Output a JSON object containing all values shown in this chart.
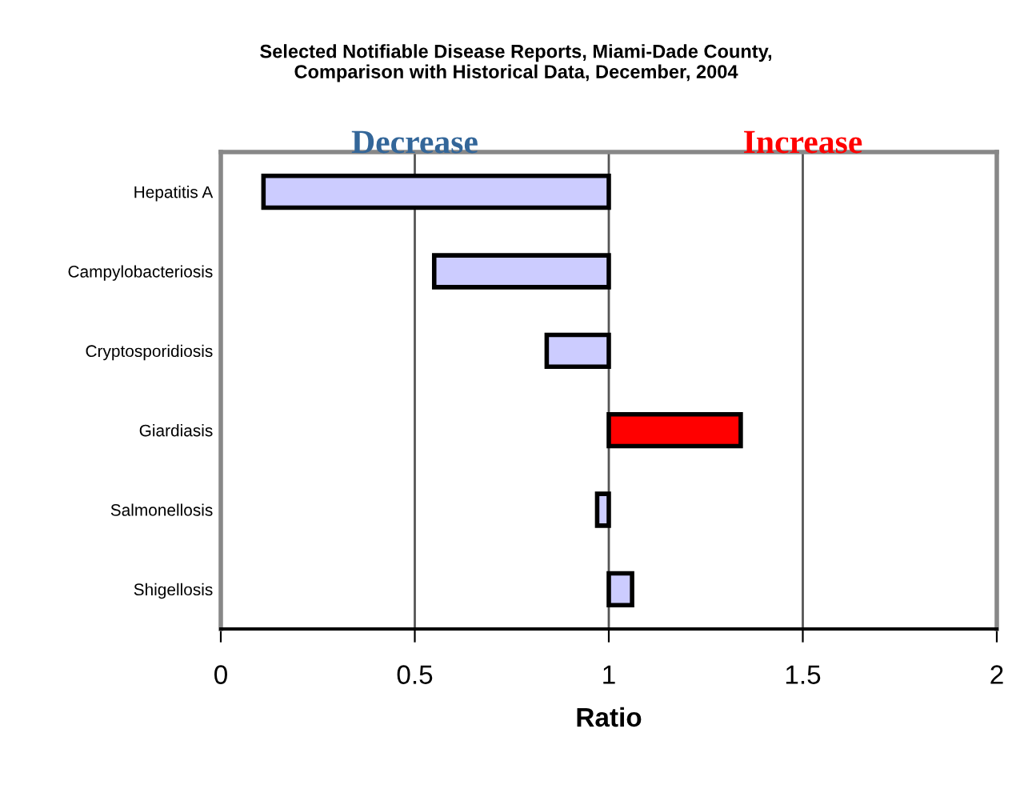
{
  "chart_data": {
    "type": "bar",
    "orientation": "horizontal",
    "title": "Selected Notifiable Disease Reports, Miami-Dade County,\nComparison with Historical Data, December, 2004",
    "xlabel": "Ratio",
    "categories": [
      "Hepatitis A",
      "Campylobacteriosis",
      "Cryptosporidiosis",
      "Giardiasis",
      "Salmonellosis",
      "Shigellosis"
    ],
    "base": [
      0.11,
      0.55,
      0.84,
      1,
      0.97,
      1
    ],
    "values": [
      0.89,
      0.45,
      0.16,
      0.34,
      0.03,
      0.06
    ],
    "colors": [
      "#ccccff",
      "#ccccff",
      "#ccccff",
      "#ff0000",
      "#ccccff",
      "#ccccff"
    ],
    "xlim": [
      0,
      2
    ],
    "xticks": [
      0,
      0.5,
      1,
      1.5,
      2
    ],
    "grid": "x",
    "annotations": [
      "Decrease",
      "Increase"
    ]
  }
}
